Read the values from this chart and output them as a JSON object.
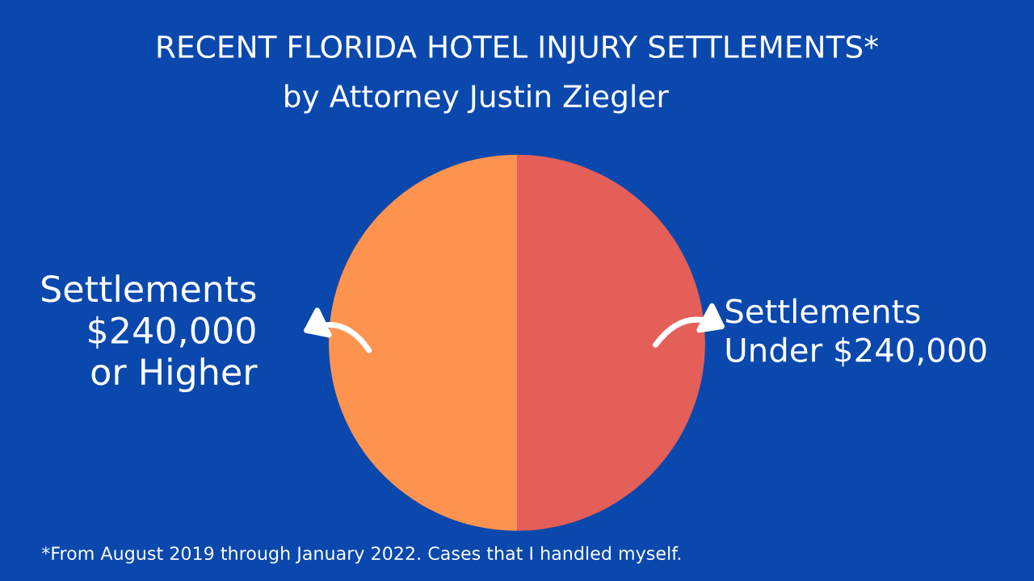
{
  "chart_data": {
    "type": "pie",
    "title": "RECENT FLORIDA HOTEL INJURY SETTLEMENTS*",
    "subtitle": "by Attorney Justin Ziegler",
    "categories": [
      "Settlements\n$240,000\nor Higher",
      "Settlements\nUnder $240,000"
    ],
    "values": [
      50,
      50
    ],
    "colors": [
      "#fe9350",
      "#e35f58"
    ],
    "annotations": [
      "*From August 2019 through January 2022. Cases that I handled myself."
    ]
  }
}
